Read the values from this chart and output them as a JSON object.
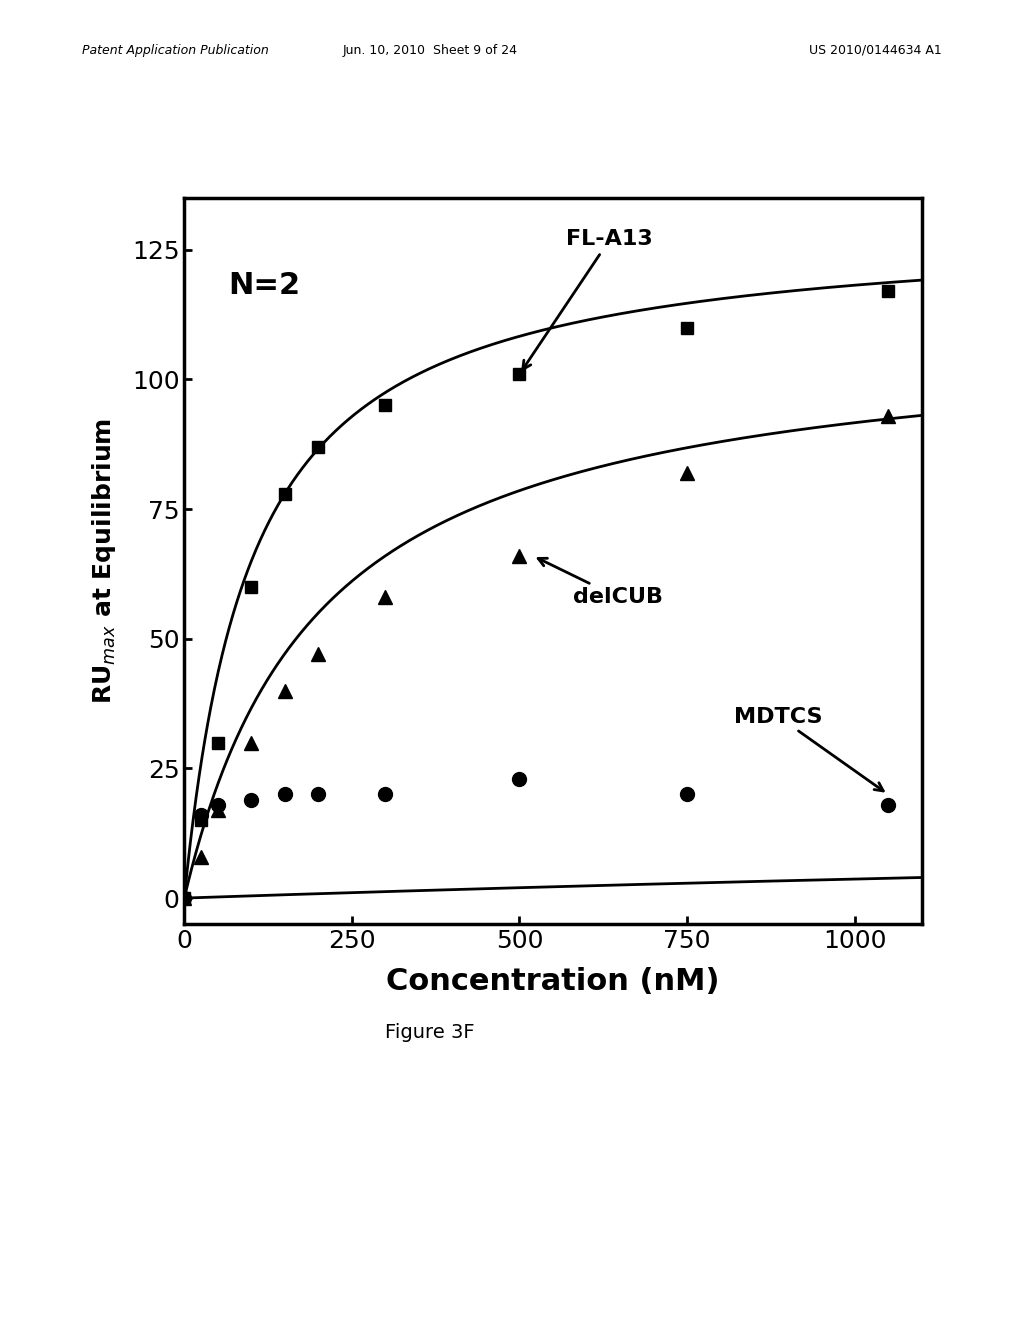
{
  "title": "",
  "xlabel": "Concentration (nM)",
  "ylabel": "RU$_{max}$ at Equilibrium",
  "xlim": [
    0,
    1100
  ],
  "ylim": [
    -5,
    135
  ],
  "xticks": [
    0,
    250,
    500,
    750,
    1000
  ],
  "yticks": [
    0,
    25,
    50,
    75,
    100,
    125
  ],
  "annotation_text": "N=2",
  "figure_caption": "Figure 3F",
  "header_left": "Patent Application Publication",
  "header_center": "Jun. 10, 2010  Sheet 9 of 24",
  "header_right": "US 2010/0144634 A1",
  "FL_A13": {
    "x_data": [
      0,
      25,
      50,
      100,
      150,
      200,
      300,
      500,
      750,
      1050
    ],
    "y_data": [
      0,
      15,
      30,
      60,
      78,
      87,
      95,
      101,
      110,
      117
    ],
    "label": "FL-A13",
    "marker": "s",
    "color": "#000000",
    "Km": 100,
    "Vmax": 130
  },
  "delCUB": {
    "x_data": [
      0,
      25,
      50,
      100,
      150,
      200,
      300,
      500,
      750,
      1050
    ],
    "y_data": [
      0,
      8,
      17,
      30,
      40,
      47,
      58,
      66,
      82,
      93
    ],
    "label": "delCUB",
    "marker": "^",
    "color": "#000000",
    "Km": 200,
    "Vmax": 110
  },
  "MDTCS": {
    "x_data": [
      0,
      25,
      50,
      100,
      150,
      200,
      300,
      500,
      750,
      1050
    ],
    "y_data": [
      0,
      16,
      18,
      19,
      20,
      20,
      20,
      23,
      20,
      18
    ],
    "label": "MDTCS",
    "marker": "o",
    "color": "#000000",
    "Km": 5000,
    "Vmax": 22
  }
}
